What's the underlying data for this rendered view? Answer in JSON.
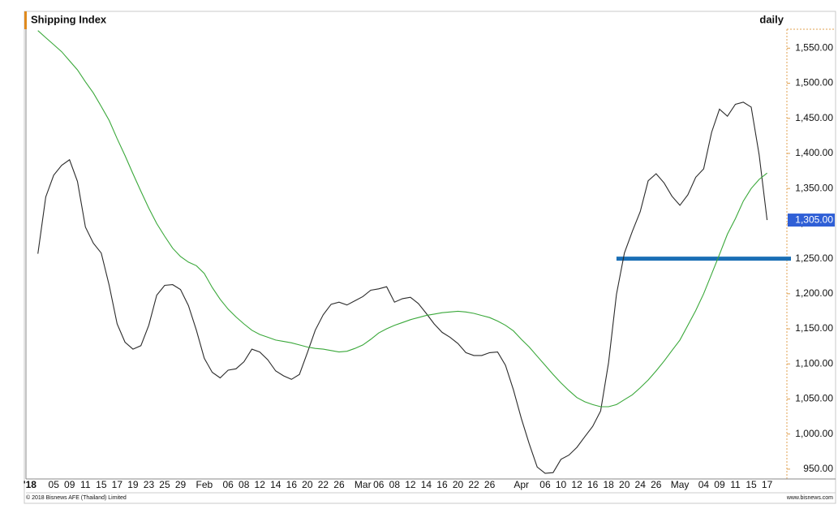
{
  "chart_data": {
    "type": "line",
    "title": "Shipping Index",
    "subtitle": "daily",
    "credits": [
      "© 2018 Bisnews AFE (Thailand) Limited",
      "www.bisnews.com"
    ],
    "categories": [
      "'18",
      null,
      null,
      "05",
      null,
      "09",
      null,
      "11",
      null,
      "15",
      null,
      "17",
      null,
      "19",
      null,
      "23",
      null,
      "25",
      null,
      "29",
      null,
      null,
      "Feb",
      null,
      null,
      "06",
      null,
      "08",
      null,
      "12",
      null,
      "14",
      null,
      "16",
      null,
      "20",
      null,
      "22",
      null,
      "26",
      null,
      null,
      "Mar",
      null,
      "06",
      null,
      "08",
      null,
      "12",
      null,
      "14",
      null,
      "16",
      null,
      "20",
      null,
      "22",
      null,
      "26",
      null,
      null,
      null,
      "Apr",
      null,
      null,
      "06",
      null,
      "10",
      null,
      "12",
      null,
      "16",
      null,
      "18",
      null,
      "20",
      null,
      "24",
      null,
      "26",
      null,
      null,
      "May",
      null,
      null,
      "04",
      null,
      "09",
      null,
      "11",
      null,
      "15",
      null,
      "17",
      null,
      null
    ],
    "series": [
      {
        "color": "#2b2b2b",
        "values": [
          null,
          1257,
          1338,
          1369,
          1383,
          1391,
          1360,
          1295,
          1272,
          1258,
          1212,
          1157,
          1131,
          1121,
          1126,
          1155,
          1198,
          1212,
          1213,
          1206,
          1183,
          1148,
          1108,
          1088,
          1080,
          1091,
          1093,
          1103,
          1121,
          1117,
          1106,
          1090,
          1083,
          1078,
          1085,
          1116,
          1148,
          1170,
          1185,
          1188,
          1184,
          1190,
          1196,
          1205,
          1207,
          1210,
          1188,
          1193,
          1195,
          1186,
          1172,
          1157,
          1145,
          1138,
          1129,
          1116,
          1112,
          1112,
          1116,
          1117,
          1098,
          1063,
          1022,
          986,
          953,
          944,
          945,
          964,
          970,
          981,
          996,
          1011,
          1033,
          1102,
          1199,
          1258,
          1289,
          1317,
          1361,
          1371,
          1358,
          1339,
          1326,
          1341,
          1366,
          1378,
          1430,
          1463,
          1453,
          1470,
          1473,
          1466,
          1398,
          1305,
          null,
          null
        ],
        "value_labels": [
          null,
          null,
          null,
          null,
          null,
          null,
          null,
          null,
          null,
          null,
          null,
          null,
          null,
          null,
          null,
          null,
          null,
          null,
          null,
          null,
          null,
          null,
          null,
          null,
          null,
          null,
          null,
          null,
          null,
          null,
          null,
          null,
          null,
          null,
          null,
          null,
          null,
          null,
          null,
          null,
          null,
          null,
          null,
          null,
          null,
          null,
          null,
          null,
          null,
          null,
          null,
          null,
          null,
          null,
          null,
          null,
          null,
          null,
          null,
          null,
          null,
          null,
          null,
          null,
          null,
          null,
          null,
          null,
          null,
          null,
          null,
          null,
          null,
          null,
          null,
          null,
          null,
          null,
          null,
          null,
          null,
          null,
          null,
          null,
          null,
          null,
          null,
          null,
          null,
          null,
          null,
          null,
          null,
          "1,305.00",
          null,
          null
        ],
        "label_color": "#2f5fd6"
      },
      {
        "color": "#3aa83a",
        "values": [
          null,
          1575,
          1565,
          1555,
          1545,
          1532,
          1519,
          1502,
          1486,
          1467,
          1447,
          1421,
          1397,
          1371,
          1346,
          1322,
          1300,
          1282,
          1265,
          1253,
          1245,
          1240,
          1229,
          1209,
          1192,
          1178,
          1167,
          1157,
          1148,
          1142,
          1138,
          1134,
          1132,
          1130,
          1127,
          1124,
          1122,
          1121,
          1119,
          1117,
          1118,
          1122,
          1127,
          1135,
          1144,
          1150,
          1155,
          1159,
          1163,
          1166,
          1169,
          1171,
          1173,
          1174,
          1175,
          1174,
          1172,
          1169,
          1166,
          1161,
          1155,
          1147,
          1135,
          1124,
          1111,
          1098,
          1085,
          1073,
          1062,
          1052,
          1046,
          1042,
          1039,
          1039,
          1042,
          1049,
          1056,
          1066,
          1077,
          1090,
          1104,
          1119,
          1134,
          1155,
          1176,
          1200,
          1228,
          1256,
          1285,
          1307,
          1332,
          1350,
          1363,
          1372,
          null,
          null
        ]
      }
    ],
    "hline": {
      "value": 1250,
      "x_start": 74,
      "color": "#1a6fb5"
    },
    "ylim": [
      936,
      1577
    ],
    "yticks": [
      {
        "value": 950,
        "label": "950.00"
      },
      {
        "value": 1000,
        "label": "1,000.00"
      },
      {
        "value": 1050,
        "label": "1,050.00"
      },
      {
        "value": 1100,
        "label": "1,100.00"
      },
      {
        "value": 1150,
        "label": "1,150.00"
      },
      {
        "value": 1200,
        "label": "1,200.00"
      },
      {
        "value": 1250,
        "label": "1,250.00"
      },
      {
        "value": 1300,
        "label": "1,300.00"
      },
      {
        "value": 1350,
        "label": "1,350.00"
      },
      {
        "value": 1400,
        "label": "1,400.00"
      },
      {
        "value": 1450,
        "label": "1,450.00"
      },
      {
        "value": 1500,
        "label": "1,500.00"
      },
      {
        "value": 1550,
        "label": "1,550.00"
      }
    ],
    "grid": false
  }
}
